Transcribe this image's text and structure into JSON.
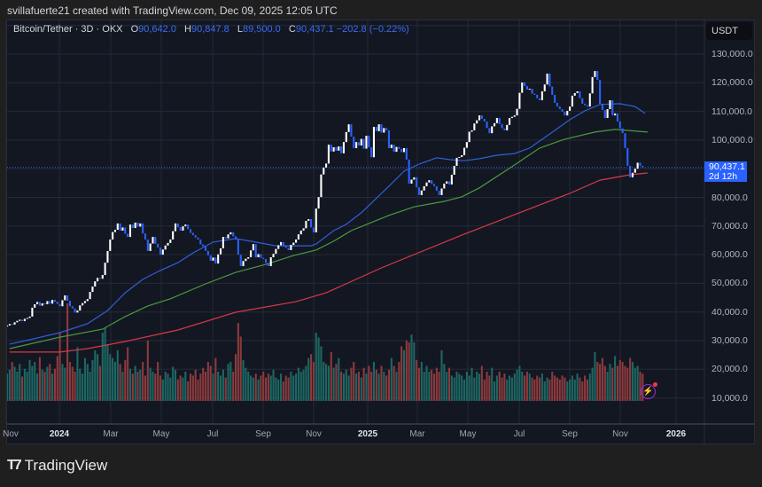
{
  "header": {
    "text": "svillafuerte21 created with TradingView.com, Dec 09, 2025 12:05 UTC"
  },
  "legend": {
    "symbol": "Bitcoin/Tether · 3D · OKX",
    "open_label": "O",
    "open": "90,642.0",
    "high_label": "H",
    "high": "90,847.8",
    "low_label": "L",
    "low": "89,500.0",
    "close_label": "C",
    "close": "90,437.1",
    "change": "−202.8 (−0.22%)"
  },
  "price_axis": {
    "currency": "USDT",
    "ticks": [
      "130,000.0",
      "120,000.0",
      "110,000.0",
      "100,000.0",
      "80,000.0",
      "70,000.0",
      "60,000.0",
      "50,000.0",
      "40,000.0",
      "30,000.0",
      "20,000.0",
      "10,000.0"
    ],
    "current_price": "90,437.1",
    "countdown": "2d 12h"
  },
  "time_axis": {
    "ticks": [
      "Nov",
      "2024",
      "Mar",
      "May",
      "Jul",
      "Sep",
      "Nov",
      "2025",
      "Mar",
      "May",
      "Jul",
      "Sep",
      "Nov",
      "2026"
    ]
  },
  "branding": {
    "logo": "TradingView"
  },
  "colors": {
    "up": "#ffffff",
    "down": "#2962ff",
    "vol_up": "#1d6763",
    "vol_down": "#8b3a3d",
    "ma_blue": "#2f5fd8",
    "ma_green": "#4a9a40",
    "ma_red": "#d63a45",
    "accent": "#2962ff"
  },
  "chart_data": {
    "type": "candlestick",
    "interval": "3D",
    "ylim": [
      10000,
      130000
    ],
    "y_ticks": [
      10000,
      20000,
      30000,
      40000,
      50000,
      60000,
      70000,
      80000,
      90000,
      100000,
      110000,
      120000,
      130000
    ],
    "grid": true,
    "close": [
      35300,
      35800,
      35600,
      36400,
      36900,
      37300,
      36800,
      37600,
      37900,
      38400,
      41500,
      42700,
      43500,
      42200,
      43000,
      42700,
      43800,
      42900,
      44200,
      43600,
      42800,
      42000,
      44100,
      45800,
      43900,
      42000,
      41200,
      39800,
      40500,
      42300,
      43100,
      43800,
      44500,
      47000,
      48900,
      50700,
      51900,
      51600,
      52900,
      57200,
      61300,
      65300,
      67900,
      68700,
      70900,
      68400,
      69500,
      67300,
      66200,
      70500,
      69300,
      71200,
      69800,
      70900,
      67400,
      65300,
      61300,
      63900,
      66200,
      63800,
      62500,
      60000,
      61800,
      63200,
      64100,
      65300,
      68200,
      70900,
      69600,
      68400,
      69900,
      70500,
      68900,
      67600,
      66800,
      66000,
      65300,
      63600,
      62900,
      61300,
      59800,
      57900,
      59000,
      56900,
      60100,
      62200,
      66200,
      65700,
      67100,
      67800,
      66400,
      65300,
      60000,
      56000,
      57800,
      58600,
      59100,
      61500,
      63700,
      59100,
      60200,
      58900,
      58500,
      57100,
      56000,
      59100,
      60300,
      62000,
      63300,
      64400,
      63000,
      62400,
      61600,
      63400,
      64200,
      65300,
      67100,
      68400,
      69200,
      71800,
      72400,
      69500,
      67800,
      76100,
      80100,
      88000,
      90400,
      91800,
      98400,
      96000,
      97500,
      96300,
      97800,
      95400,
      99300,
      102800,
      105500,
      101200,
      97200,
      99300,
      98100,
      100400,
      97000,
      101500,
      97500,
      94000,
      104600,
      103100,
      105500,
      102600,
      104200,
      103400,
      97200,
      98400,
      95900,
      97600,
      96900,
      95800,
      97200,
      93200,
      84800,
      86200,
      87000,
      83500,
      80800,
      82400,
      83900,
      85200,
      86000,
      84700,
      83900,
      82300,
      80800,
      83100,
      84800,
      85600,
      84500,
      87900,
      91000,
      93800,
      94100,
      94700,
      97300,
      99300,
      102900,
      103400,
      105800,
      106900,
      108600,
      107400,
      106500,
      104200,
      102400,
      104800,
      105900,
      107700,
      105600,
      104100,
      103400,
      105300,
      107700,
      108100,
      108600,
      110900,
      116500,
      120100,
      118900,
      117600,
      117900,
      116200,
      115800,
      114600,
      113900,
      117000,
      119400,
      123200,
      118700,
      115800,
      113000,
      111700,
      110800,
      109900,
      108600,
      110200,
      111700,
      115500,
      116400,
      117000,
      114600,
      112700,
      112200,
      111700,
      116300,
      122000,
      124100,
      121000,
      112700,
      110500,
      107700,
      110800,
      113900,
      108600,
      109300,
      106500,
      104100,
      102400,
      97200,
      91000,
      87000,
      88600,
      90000,
      92100,
      91000,
      90437.1
    ],
    "volume": [
      28,
      32,
      40,
      35,
      30,
      38,
      25,
      33,
      30,
      42,
      36,
      40,
      28,
      45,
      32,
      30,
      35,
      38,
      28,
      33,
      46,
      70,
      38,
      34,
      100,
      40,
      35,
      30,
      55,
      33,
      28,
      44,
      38,
      30,
      42,
      52,
      48,
      36,
      70,
      75,
      58,
      48,
      44,
      40,
      52,
      38,
      30,
      42,
      55,
      33,
      28,
      36,
      30,
      32,
      40,
      26,
      62,
      34,
      30,
      28,
      40,
      26,
      22,
      30,
      28,
      24,
      35,
      32,
      22,
      26,
      24,
      30,
      20,
      28,
      26,
      32,
      22,
      28,
      34,
      30,
      40,
      36,
      28,
      44,
      30,
      26,
      32,
      24,
      38,
      40,
      30,
      48,
      80,
      66,
      42,
      34,
      30,
      26,
      24,
      28,
      22,
      26,
      30,
      24,
      28,
      26,
      32,
      24,
      22,
      28,
      20,
      26,
      24,
      30,
      26,
      28,
      34,
      30,
      32,
      36,
      44,
      48,
      40,
      70,
      65,
      56,
      40,
      38,
      36,
      50,
      34,
      38,
      44,
      30,
      28,
      32,
      26,
      34,
      40,
      28,
      30,
      24,
      34,
      28,
      36,
      30,
      40,
      32,
      28,
      36,
      30,
      26,
      32,
      44,
      36,
      30,
      40,
      56,
      52,
      62,
      60,
      68,
      60,
      42,
      34,
      40,
      30,
      36,
      30,
      32,
      28,
      34,
      30,
      52,
      38,
      30,
      34,
      26,
      24,
      30,
      28,
      26,
      22,
      30,
      26,
      34,
      24,
      30,
      28,
      36,
      22,
      30,
      26,
      34,
      20,
      26,
      30,
      24,
      28,
      22,
      26,
      24,
      28,
      32,
      36,
      30,
      26,
      30,
      28,
      24,
      22,
      26,
      24,
      28,
      20,
      24,
      22,
      30,
      26,
      24,
      22,
      26,
      24,
      20,
      22,
      26,
      22,
      28,
      24,
      20,
      26,
      22,
      28,
      34,
      50,
      40,
      38,
      44,
      36,
      30,
      38,
      34,
      46,
      36,
      42,
      40,
      36,
      34,
      44,
      40,
      34,
      36,
      30,
      28
    ],
    "moving_averages": [
      {
        "color_key": "ma_blue",
        "points": [
          [
            1,
            28800
          ],
          [
            9,
            30300
          ],
          [
            21,
            32800
          ],
          [
            32,
            35900
          ],
          [
            40,
            40500
          ],
          [
            47,
            46700
          ],
          [
            54,
            51400
          ],
          [
            61,
            54500
          ],
          [
            68,
            57200
          ],
          [
            74,
            60600
          ],
          [
            82,
            64400
          ],
          [
            91,
            65600
          ],
          [
            99,
            64400
          ],
          [
            107,
            63100
          ],
          [
            121,
            63100
          ],
          [
            123,
            63700
          ],
          [
            130,
            68400
          ],
          [
            135,
            70600
          ],
          [
            141,
            74600
          ],
          [
            152,
            83900
          ],
          [
            158,
            89100
          ],
          [
            164,
            91600
          ],
          [
            171,
            93800
          ],
          [
            176,
            93200
          ],
          [
            182,
            92800
          ],
          [
            188,
            93500
          ],
          [
            195,
            94700
          ],
          [
            202,
            95300
          ],
          [
            208,
            97200
          ],
          [
            215,
            101500
          ],
          [
            224,
            107100
          ],
          [
            230,
            110200
          ],
          [
            236,
            112400
          ],
          [
            244,
            112700
          ],
          [
            250,
            111700
          ],
          [
            254,
            109300
          ]
        ]
      },
      {
        "color_key": "ma_green",
        "points": [
          [
            1,
            27200
          ],
          [
            21,
            31200
          ],
          [
            38,
            34000
          ],
          [
            47,
            38400
          ],
          [
            56,
            42100
          ],
          [
            65,
            44600
          ],
          [
            79,
            49800
          ],
          [
            91,
            53800
          ],
          [
            103,
            56600
          ],
          [
            114,
            59700
          ],
          [
            123,
            61600
          ],
          [
            130,
            64700
          ],
          [
            137,
            68400
          ],
          [
            152,
            73700
          ],
          [
            162,
            76700
          ],
          [
            174,
            78600
          ],
          [
            181,
            80200
          ],
          [
            188,
            83300
          ],
          [
            201,
            90700
          ],
          [
            212,
            97200
          ],
          [
            222,
            100300
          ],
          [
            234,
            102800
          ],
          [
            242,
            103700
          ],
          [
            255,
            102800
          ]
        ]
      },
      {
        "color_key": "ma_red",
        "points": [
          [
            1,
            26000
          ],
          [
            21,
            26000
          ],
          [
            32,
            27200
          ],
          [
            47,
            29700
          ],
          [
            68,
            33700
          ],
          [
            91,
            39900
          ],
          [
            115,
            43600
          ],
          [
            127,
            46700
          ],
          [
            149,
            55400
          ],
          [
            181,
            66800
          ],
          [
            213,
            77700
          ],
          [
            224,
            81400
          ],
          [
            236,
            86000
          ],
          [
            248,
            87900
          ],
          [
            255,
            88500
          ]
        ]
      }
    ]
  }
}
